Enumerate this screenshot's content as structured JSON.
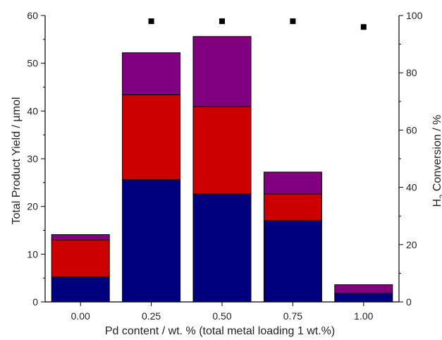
{
  "chart_data": {
    "type": "bar",
    "stacked": true,
    "title": "",
    "categories": [
      "0.00",
      "0.25",
      "0.50",
      "0.75",
      "1.00"
    ],
    "xlabel": "Pd content / wt. % (total metal loading 1 wt.%)",
    "ylabel": "Total Product Yield / µmol",
    "y2label_parts": [
      "H",
      "2",
      " Conversion / %"
    ],
    "ylim": [
      0,
      60
    ],
    "y_ticks": [
      "0",
      "10",
      "20",
      "30",
      "40",
      "50",
      "60"
    ],
    "y2lim": [
      0,
      100
    ],
    "y2_ticks": [
      "0",
      "20",
      "40",
      "60",
      "80",
      "100"
    ],
    "series": [
      {
        "color": "#00007f",
        "values": [
          5.2,
          25.6,
          22.6,
          17.0,
          1.8
        ]
      },
      {
        "color": "#cc0000",
        "values": [
          7.8,
          17.8,
          18.3,
          5.6,
          0.0
        ]
      },
      {
        "color": "#800080",
        "values": [
          1.1,
          8.8,
          14.7,
          4.6,
          1.8
        ]
      }
    ],
    "h2_conversion": {
      "axis": "right",
      "marker": "square",
      "color": "#000000",
      "values": [
        null,
        98,
        98,
        98,
        96
      ]
    },
    "legend": "none",
    "grid": false
  }
}
